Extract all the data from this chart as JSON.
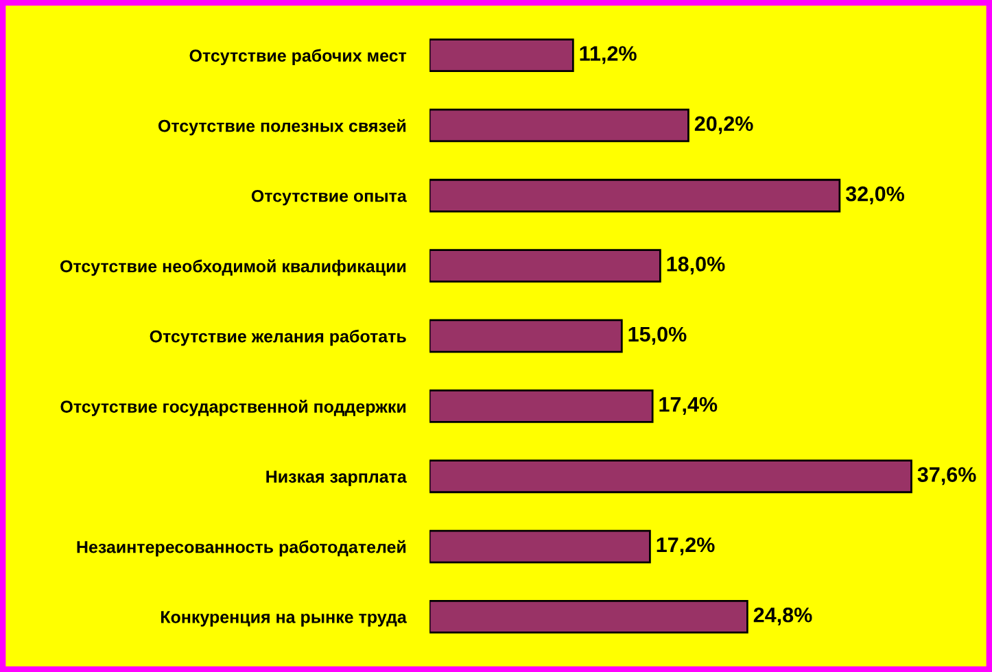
{
  "chart_data": {
    "type": "bar",
    "orientation": "horizontal",
    "categories": [
      "Отсутствие рабочих мест",
      "Отсутствие полезных связей",
      "Отсутствие опыта",
      "Отсутствие необходимой квалификации",
      "Отсутствие желания работать",
      "Отсутствие государственной поддержки",
      "Низкая зарплата",
      "Незаинтересованность работодателей",
      "Конкуренция на рынке труда"
    ],
    "values": [
      11.2,
      20.2,
      32.0,
      18.0,
      15.0,
      17.4,
      37.6,
      17.2,
      24.8
    ],
    "value_labels": [
      "11,2%",
      "20,2%",
      "32,0%",
      "18,0%",
      "15,0%",
      "17,4%",
      "37,6%",
      "17,2%",
      "24,8%"
    ],
    "color": "#993366",
    "grid": false,
    "legend": false
  }
}
